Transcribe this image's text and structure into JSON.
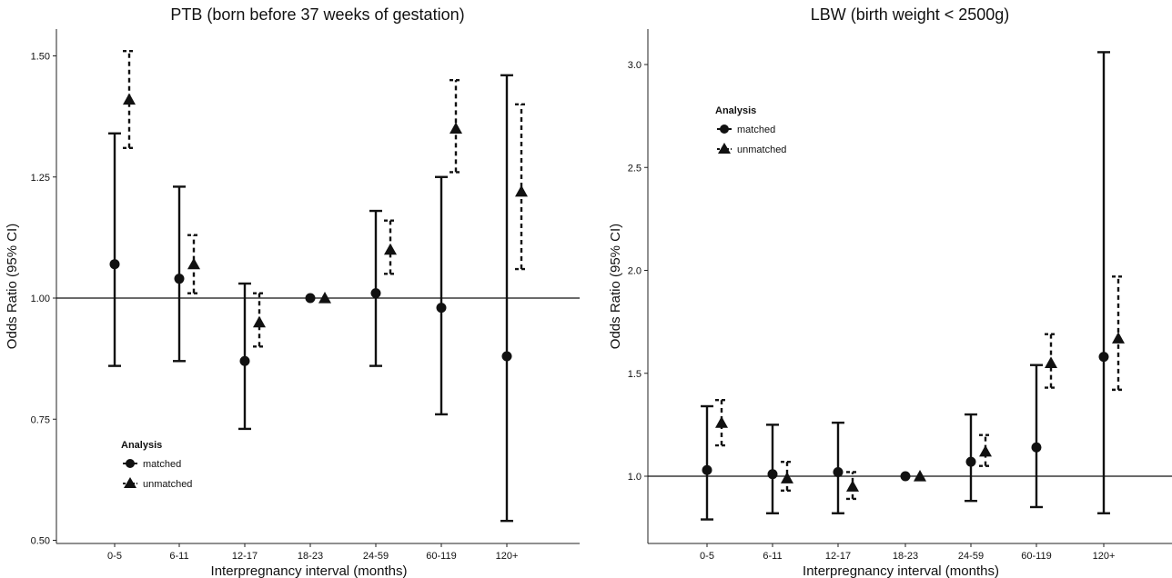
{
  "chart_data": [
    {
      "type": "scatter",
      "title": "PTB (born before 37 weeks of gestation)",
      "xlabel": "Interpregnancy interval (months)",
      "ylabel": "Odds Ratio (95% CI)",
      "categories": [
        "0-5",
        "6-11",
        "12-17",
        "18-23",
        "24-59",
        "60-119",
        "120+"
      ],
      "ylim": [
        0.5,
        1.6
      ],
      "yticks": [
        "0.50",
        "0.75",
        "1.00",
        "1.25",
        "1.50"
      ],
      "reference_line": 1.0,
      "legend": {
        "title": "Analysis",
        "placement": "bottom-left"
      },
      "series": [
        {
          "name": "matched",
          "marker": "circle",
          "line": "solid",
          "values": [
            1.07,
            1.04,
            0.87,
            1.0,
            1.01,
            0.98,
            0.88
          ],
          "lower": [
            0.86,
            0.87,
            0.73,
            null,
            0.86,
            0.76,
            0.54
          ],
          "upper": [
            1.34,
            1.23,
            1.03,
            null,
            1.18,
            1.25,
            1.46
          ]
        },
        {
          "name": "unmatched",
          "marker": "triangle",
          "line": "dashed",
          "values": [
            1.41,
            1.07,
            0.95,
            1.0,
            1.1,
            1.35,
            1.22
          ],
          "lower": [
            1.31,
            1.01,
            0.9,
            null,
            1.05,
            1.26,
            1.06
          ],
          "upper": [
            1.51,
            1.13,
            1.01,
            null,
            1.16,
            1.45,
            1.4
          ]
        }
      ]
    },
    {
      "type": "scatter",
      "title": "LBW (birth weight < 2500g)",
      "xlabel": "Interpregnancy interval (months)",
      "ylabel": "Odds Ratio (95% CI)",
      "categories": [
        "0-5",
        "6-11",
        "12-17",
        "18-23",
        "24-59",
        "60-119",
        "120+"
      ],
      "ylim": [
        0.79,
        3.2
      ],
      "yticks": [
        "1.0",
        "1.5",
        "2.0",
        "2.5",
        "3.0"
      ],
      "reference_line": 1.0,
      "legend": {
        "title": "Analysis",
        "placement": "top-left"
      },
      "series": [
        {
          "name": "matched",
          "marker": "circle",
          "line": "solid",
          "values": [
            1.03,
            1.01,
            1.02,
            1.0,
            1.07,
            1.14,
            1.58
          ],
          "lower": [
            0.79,
            0.82,
            0.82,
            null,
            0.88,
            0.85,
            0.82
          ],
          "upper": [
            1.34,
            1.25,
            1.26,
            null,
            1.3,
            1.54,
            3.06
          ]
        },
        {
          "name": "unmatched",
          "marker": "triangle",
          "line": "dashed",
          "values": [
            1.26,
            0.99,
            0.95,
            1.0,
            1.12,
            1.55,
            1.67
          ],
          "lower": [
            1.15,
            0.93,
            0.89,
            null,
            1.05,
            1.43,
            1.42
          ],
          "upper": [
            1.37,
            1.07,
            1.02,
            null,
            1.2,
            1.69,
            1.97
          ]
        }
      ]
    }
  ]
}
